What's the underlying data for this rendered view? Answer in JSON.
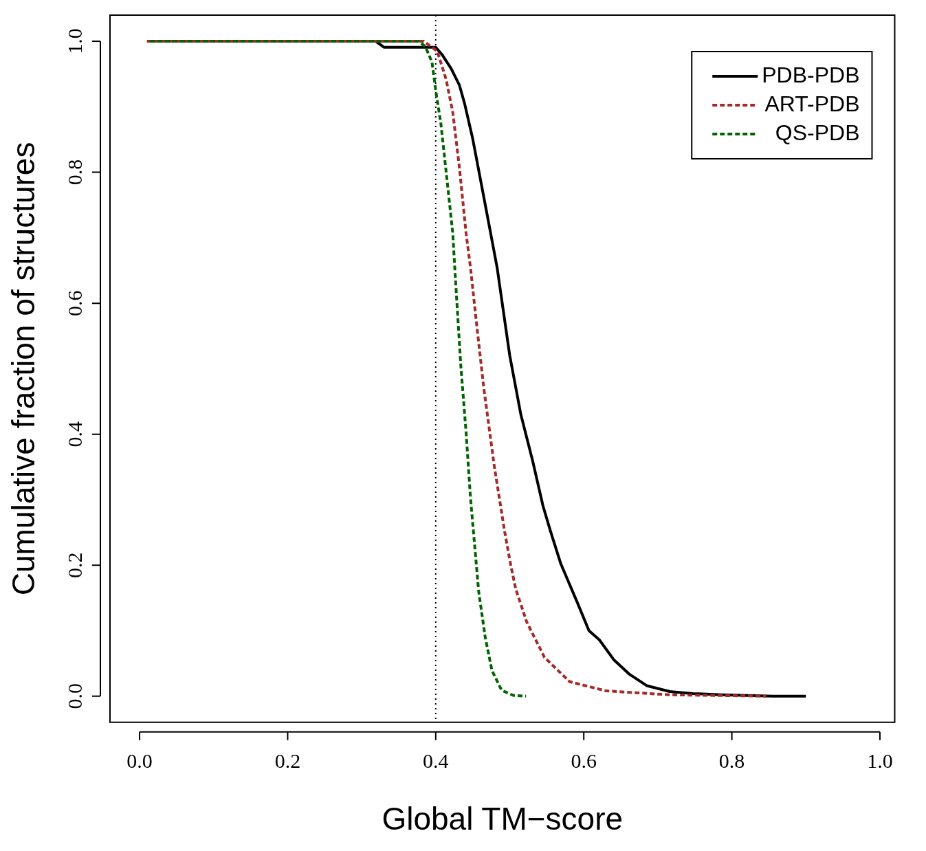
{
  "chart_data": {
    "type": "line",
    "xlabel": "Global TM−score",
    "ylabel": "Cumulative fraction of structures",
    "xlim": [
      -0.04,
      1.02
    ],
    "ylim": [
      -0.04,
      1.04
    ],
    "xticks": [
      {
        "value": 0,
        "label": "0.0"
      },
      {
        "value": 0.2,
        "label": "0.2"
      },
      {
        "value": 0.4,
        "label": "0.4"
      },
      {
        "value": 0.6,
        "label": "0.6"
      },
      {
        "value": 0.8,
        "label": "0.8"
      },
      {
        "value": 1,
        "label": "1.0"
      }
    ],
    "yticks": [
      {
        "value": 0,
        "label": "0.0"
      },
      {
        "value": 0.2,
        "label": "0.2"
      },
      {
        "value": 0.4,
        "label": "0.4"
      },
      {
        "value": 0.6,
        "label": "0.6"
      },
      {
        "value": 0.8,
        "label": "0.8"
      },
      {
        "value": 1,
        "label": "1.0"
      }
    ],
    "grid": false,
    "legend": "top right",
    "marker": "none",
    "ref_lines": [
      {
        "axis": "x",
        "value": 0.4,
        "label": null,
        "color": "#000000",
        "line_style": "dotted"
      }
    ],
    "series": [
      {
        "name": "PDB-PDB",
        "color": "#000000",
        "line_style": "solid",
        "x": [
          0.01,
          0.319,
          0.33,
          0.4,
          0.409,
          0.421,
          0.432,
          0.439,
          0.45,
          0.467,
          0.483,
          0.5,
          0.515,
          0.531,
          0.545,
          0.555,
          0.569,
          0.592,
          0.607,
          0.621,
          0.641,
          0.661,
          0.685,
          0.716,
          0.747,
          0.786,
          0.855,
          0.9
        ],
        "values": [
          1,
          1,
          0.991,
          0.991,
          0.979,
          0.958,
          0.933,
          0.905,
          0.851,
          0.75,
          0.654,
          0.52,
          0.43,
          0.359,
          0.29,
          0.252,
          0.202,
          0.141,
          0.1,
          0.086,
          0.055,
          0.034,
          0.016,
          0.007,
          0.004,
          0.002,
          0,
          0
        ]
      },
      {
        "name": "ART-PDB",
        "color": "#a52a2a",
        "line_style": "dashed",
        "x": [
          0.01,
          0.377,
          0.384,
          0.402,
          0.414,
          0.423,
          0.432,
          0.441,
          0.447,
          0.456,
          0.465,
          0.479,
          0.493,
          0.501,
          0.508,
          0.523,
          0.547,
          0.581,
          0.63,
          0.716,
          0.846
        ],
        "values": [
          1,
          1,
          1,
          0.985,
          0.942,
          0.892,
          0.807,
          0.707,
          0.654,
          0.56,
          0.47,
          0.352,
          0.252,
          0.202,
          0.164,
          0.113,
          0.059,
          0.022,
          0.008,
          0.002,
          0
        ]
      },
      {
        "name": "QS-PDB",
        "color": "#006400",
        "line_style": "dashed",
        "x": [
          0.01,
          0.377,
          0.386,
          0.395,
          0.4,
          0.407,
          0.415,
          0.423,
          0.427,
          0.434,
          0.441,
          0.447,
          0.454,
          0.458,
          0.467,
          0.476,
          0.489,
          0.505,
          0.522
        ],
        "values": [
          1,
          1,
          0.992,
          0.968,
          0.925,
          0.874,
          0.791,
          0.707,
          0.63,
          0.503,
          0.403,
          0.302,
          0.212,
          0.16,
          0.089,
          0.039,
          0.009,
          0.001,
          0
        ]
      }
    ]
  }
}
